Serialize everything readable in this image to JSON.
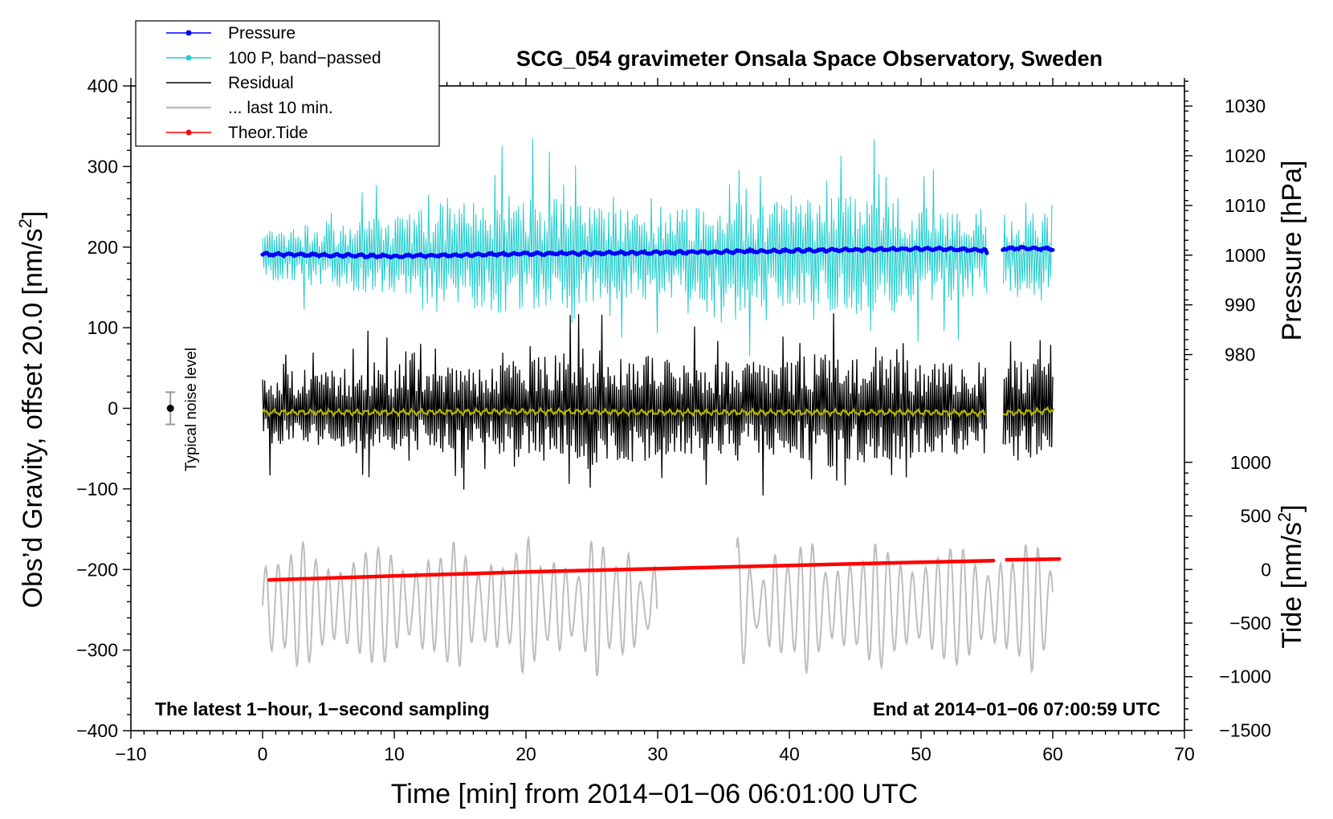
{
  "chart_data": {
    "type": "line",
    "title": "SCG_054 gravimeter Onsala Space Observatory, Sweden",
    "xlabel": "Time [min] from 2014−01−06 06:01:00 UTC",
    "ylabel": "Obs’d Gravity, offset 20.0 [nm/s²]",
    "ylabel_right_top": "Pressure [hPa]",
    "ylabel_right_bottom": "Tide [nm/s²]",
    "xlim": [
      -10,
      70
    ],
    "ylim": [
      -400,
      400
    ],
    "x_ticks": [
      -10,
      0,
      10,
      20,
      30,
      40,
      50,
      60,
      70
    ],
    "x_tick_labels": [
      "−10",
      "0",
      "10",
      "20",
      "30",
      "40",
      "50",
      "60",
      "70"
    ],
    "y_ticks": [
      -400,
      -300,
      -200,
      -100,
      0,
      100,
      200,
      300,
      400
    ],
    "y_tick_labels": [
      "−400",
      "−300",
      "−200",
      "−100",
      "0",
      "100",
      "200",
      "300",
      "400"
    ],
    "pressure_axis": {
      "ticks": [
        980,
        990,
        1000,
        1010,
        1020,
        1030
      ],
      "tick_labels": [
        "980",
        "990",
        "1000",
        "1010",
        "1020",
        "1030"
      ],
      "maps_to_gravity": {
        "value_a": 1000,
        "gravity_a": 190,
        "value_b": 1030,
        "gravity_b": 375
      }
    },
    "tide_axis": {
      "ticks": [
        -1500,
        -1000,
        -500,
        0,
        500,
        1000
      ],
      "tick_labels": [
        "−1500",
        "−1000",
        "−500",
        "0",
        "500",
        "1000"
      ],
      "maps_to_gravity": {
        "value_a": 0,
        "gravity_a": -200,
        "value_b": 1000,
        "gravity_b": -67
      }
    },
    "legend": [
      {
        "label": "Pressure",
        "color": "#0000ff",
        "marker": "dot"
      },
      {
        "label": "100 P, band−passed",
        "color": "#22cccc",
        "marker": "dot"
      },
      {
        "label": "Residual",
        "color": "#000000",
        "marker": "none"
      },
      {
        "label": "... last 10 min.",
        "color": "#bdbdbd",
        "marker": "none"
      },
      {
        "label": "Theor.Tide",
        "color": "#ff0000",
        "marker": "dot"
      }
    ],
    "legend_position": "top-left",
    "annotations": {
      "bottom_left": "The latest 1−hour, 1−second sampling",
      "bottom_right": "End at 2014−01−06 07:00:59 UTC",
      "noise_label": "Typical noise level"
    },
    "noise_bar": {
      "x": -7,
      "center": 0,
      "half_width": 20
    },
    "series": [
      {
        "name": "Pressure",
        "unit": "hPa",
        "color": "#0000ff",
        "segments": [
          {
            "x": [
              0,
              10,
              20,
              30,
              40,
              50,
              55
            ],
            "y": [
              1000.2,
              999.8,
              1000.3,
              1000.5,
              1000.9,
              1001.3,
              1001.0
            ]
          },
          {
            "x": [
              56.2,
              58,
              60
            ],
            "y": [
              1001.3,
              1001.4,
              1001.3
            ]
          }
        ]
      },
      {
        "name": "100 P, band−passed",
        "unit": "nm/s²",
        "color": "#22cccc",
        "baseline": 190,
        "spread_profile": [
          [
            0,
            30
          ],
          [
            5,
            40
          ],
          [
            10,
            50
          ],
          [
            17,
            70
          ],
          [
            20,
            80
          ],
          [
            25,
            60
          ],
          [
            30,
            55
          ],
          [
            35,
            65
          ],
          [
            42,
            70
          ],
          [
            46,
            85
          ],
          [
            50,
            60
          ],
          [
            55,
            55
          ],
          [
            60,
            50
          ]
        ],
        "gaps": [
          [
            55,
            56.2
          ]
        ]
      },
      {
        "name": "Residual",
        "unit": "nm/s²",
        "color": "#000000",
        "baseline": 0,
        "spread_profile": [
          [
            0,
            45
          ],
          [
            5,
            50
          ],
          [
            10,
            55
          ],
          [
            15,
            55
          ],
          [
            20,
            60
          ],
          [
            24,
            80
          ],
          [
            30,
            65
          ],
          [
            35,
            60
          ],
          [
            40,
            60
          ],
          [
            43,
            75
          ],
          [
            46,
            70
          ],
          [
            50,
            55
          ],
          [
            55,
            60
          ],
          [
            60,
            65
          ]
        ],
        "gaps": [
          [
            55,
            56.2
          ]
        ]
      },
      {
        "name": "Residual (smoothed)",
        "unit": "nm/s²",
        "color": "#b5b500",
        "x": [
          0,
          10,
          20,
          30,
          40,
          50,
          55,
          56.2,
          59,
          60.2
        ],
        "y": [
          -5,
          -5,
          -4,
          -5,
          -5,
          -5,
          -6,
          -6,
          -4,
          -1
        ]
      },
      {
        "name": "... last 10 min.",
        "unit": "nm/s²",
        "color": "#bdbdbd",
        "baseline": -245,
        "amplitude": 70,
        "segments": [
          [
            0,
            30
          ],
          [
            36,
            60
          ]
        ]
      },
      {
        "name": "Theor.Tide",
        "unit": "nm/s²",
        "color": "#ff0000",
        "x": [
          0.5,
          10,
          20,
          30,
          40,
          50,
          55.5,
          56.5,
          60.5
        ],
        "y": [
          -213,
          -208,
          -203,
          -199,
          -195,
          -191,
          -189,
          -188,
          -187
        ]
      }
    ]
  }
}
